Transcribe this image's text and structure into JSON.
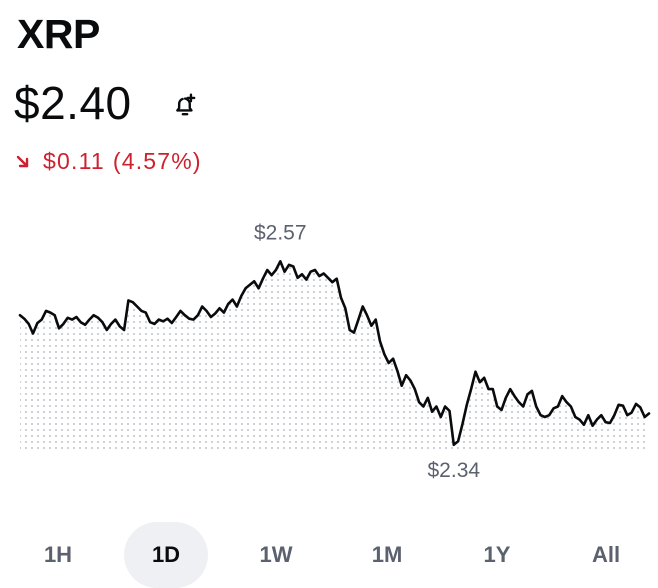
{
  "asset": {
    "name": "XRP",
    "price": "$2.40"
  },
  "change": {
    "direction": "down",
    "amount": "$0.11",
    "percent": "(4.57%)",
    "color": "#cf202f"
  },
  "chart_data": {
    "type": "line",
    "series_color": "#0a0b0d",
    "fill": "dotted-grey",
    "max_label": "$2.57",
    "min_label": "$2.34",
    "max_value": 2.57,
    "min_value": 2.34,
    "values": [
      2.495,
      2.491,
      2.485,
      2.474,
      2.486,
      2.49,
      2.5,
      2.498,
      2.495,
      2.48,
      2.485,
      2.492,
      2.49,
      2.493,
      2.487,
      2.484,
      2.49,
      2.495,
      2.492,
      2.487,
      2.478,
      2.485,
      2.49,
      2.482,
      2.478,
      2.512,
      2.51,
      2.505,
      2.5,
      2.498,
      2.487,
      2.485,
      2.49,
      2.488,
      2.491,
      2.486,
      2.493,
      2.5,
      2.495,
      2.491,
      2.49,
      2.495,
      2.505,
      2.5,
      2.493,
      2.497,
      2.503,
      2.498,
      2.508,
      2.513,
      2.505,
      2.517,
      2.526,
      2.53,
      2.534,
      2.526,
      2.537,
      2.547,
      2.541,
      2.547,
      2.557,
      2.545,
      2.553,
      2.551,
      2.538,
      2.542,
      2.536,
      2.545,
      2.547,
      2.54,
      2.543,
      2.538,
      2.533,
      2.537,
      2.515,
      2.503,
      2.478,
      2.475,
      2.49,
      2.505,
      2.495,
      2.483,
      2.49,
      2.465,
      2.45,
      2.44,
      2.445,
      2.431,
      2.414,
      2.426,
      2.42,
      2.41,
      2.395,
      2.39,
      2.4,
      2.384,
      2.39,
      2.378,
      2.39,
      2.385,
      2.346,
      2.35,
      2.37,
      2.392,
      2.41,
      2.43,
      2.418,
      2.423,
      2.41,
      2.41,
      2.39,
      2.386,
      2.4,
      2.41,
      2.402,
      2.395,
      2.39,
      2.404,
      2.408,
      2.39,
      2.38,
      2.378,
      2.38,
      2.388,
      2.39,
      2.402,
      2.395,
      2.39,
      2.378,
      2.375,
      2.369,
      2.38,
      2.368,
      2.375,
      2.38,
      2.372,
      2.371,
      2.38,
      2.392,
      2.391,
      2.38,
      2.383,
      2.393,
      2.389,
      2.378,
      2.382
    ],
    "x_range": "1D"
  },
  "ranges": [
    {
      "label": "1H",
      "active": false
    },
    {
      "label": "1D",
      "active": true
    },
    {
      "label": "1W",
      "active": false
    },
    {
      "label": "1M",
      "active": false
    },
    {
      "label": "1Y",
      "active": false
    },
    {
      "label": "All",
      "active": false
    }
  ],
  "icons": {
    "alert": "bell-plus-icon",
    "change": "arrow-down-right-icon"
  }
}
